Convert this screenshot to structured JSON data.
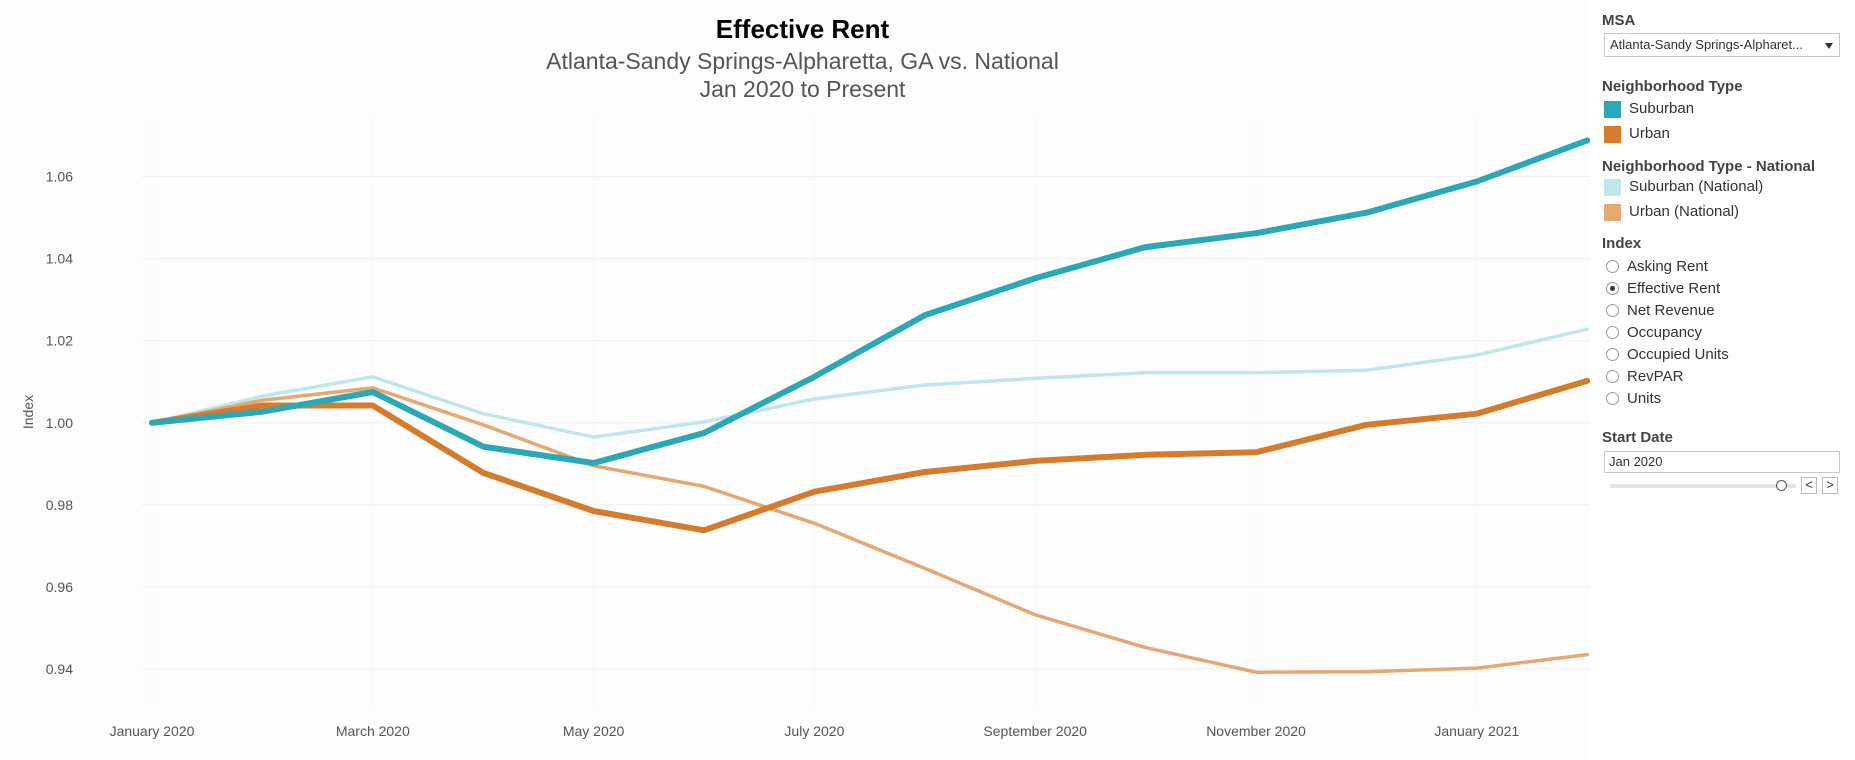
{
  "chart_data": {
    "type": "line",
    "title": "Effective Rent",
    "subtitle_lines": [
      "Atlanta-Sandy Springs-Alpharetta, GA vs. National",
      "Jan 2020 to Present"
    ],
    "ylabel": "Index",
    "xlabel": "",
    "ylim": [
      0.93,
      1.075
    ],
    "yticks": [
      0.94,
      0.96,
      0.98,
      1.0,
      1.02,
      1.04,
      1.06
    ],
    "ytick_labels": [
      "0.94",
      "0.96",
      "0.98",
      "1.00",
      "1.02",
      "1.04",
      "1.06"
    ],
    "x": [
      "2020-01",
      "2020-02",
      "2020-03",
      "2020-04",
      "2020-05",
      "2020-06",
      "2020-07",
      "2020-08",
      "2020-09",
      "2020-10",
      "2020-11",
      "2020-12",
      "2021-01",
      "2021-02"
    ],
    "xtick_labels": [
      "January 2020",
      "March 2020",
      "May 2020",
      "July 2020",
      "September 2020",
      "November 2020",
      "January 2021"
    ],
    "grid": true,
    "series": [
      {
        "name": "Suburban (National)",
        "color": "#bfe6ec",
        "values": [
          1.0,
          1.0065,
          1.0112,
          1.0022,
          0.9965,
          1.0002,
          1.0058,
          1.0092,
          1.0108,
          1.0122,
          1.0122,
          1.0128,
          1.0165,
          1.0228
        ]
      },
      {
        "name": "Urban (National)",
        "color": "#e5a873",
        "values": [
          1.0,
          1.0055,
          1.0085,
          0.9995,
          0.9895,
          0.9845,
          0.9755,
          0.9645,
          0.9532,
          0.9452,
          0.9392,
          0.9393,
          0.9402,
          0.9435
        ]
      },
      {
        "name": "Urban",
        "color": "#d57b2b",
        "values": [
          1.0,
          1.0042,
          1.0042,
          0.9878,
          0.9785,
          0.9738,
          0.9832,
          0.988,
          0.9907,
          0.9922,
          0.9928,
          0.9995,
          1.0022,
          1.0102
        ]
      },
      {
        "name": "Suburban",
        "color": "#2aa8b5",
        "values": [
          1.0,
          1.0027,
          1.0075,
          0.9942,
          0.9902,
          0.9975,
          1.0112,
          1.0262,
          1.0352,
          1.0428,
          1.0462,
          1.0512,
          1.0588,
          1.0688
        ]
      }
    ]
  },
  "filters": {
    "msa_heading": "MSA",
    "msa_value": "Atlanta-Sandy Springs-Alpharet...",
    "neighborhood_heading": "Neighborhood Type",
    "neighborhood_items": [
      {
        "label": "Suburban",
        "color": "#2aa8b5"
      },
      {
        "label": "Urban",
        "color": "#d57b2b"
      }
    ],
    "national_heading": "Neighborhood Type - National",
    "national_items": [
      {
        "label": "Suburban (National)",
        "color": "#bfe6ec"
      },
      {
        "label": "Urban (National)",
        "color": "#e5a873"
      }
    ],
    "index_heading": "Index",
    "index_options": [
      "Asking Rent",
      "Effective Rent",
      "Net Revenue",
      "Occupancy",
      "Occupied Units",
      "RevPAR",
      "Units"
    ],
    "index_selected": "Effective Rent",
    "start_date_heading": "Start Date",
    "start_date_value": "Jan 2020",
    "slider_position": 0.92,
    "prev_label": "<",
    "next_label": ">"
  }
}
